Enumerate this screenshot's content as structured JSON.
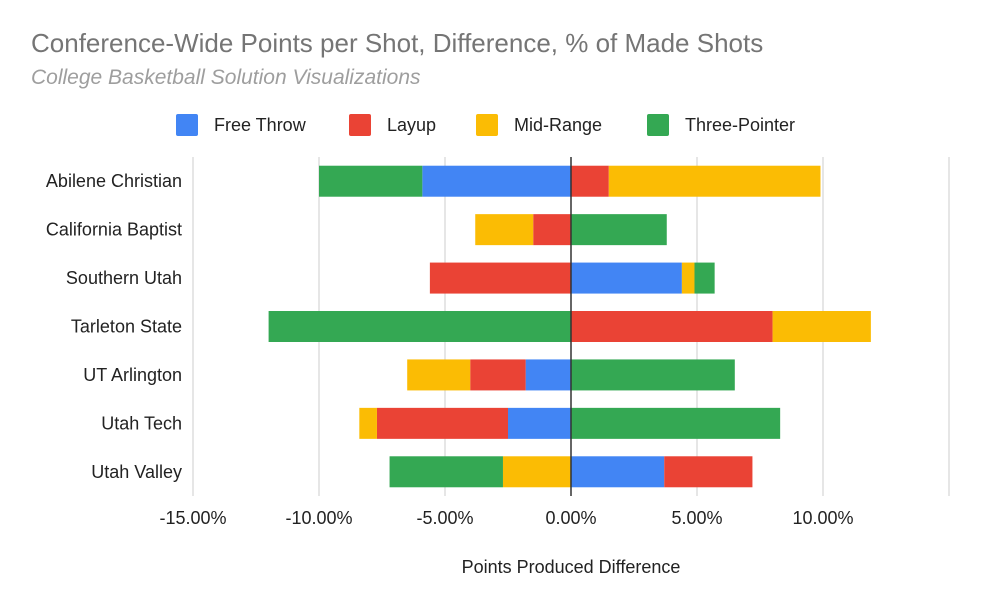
{
  "chart_data": {
    "type": "bar",
    "orientation": "horizontal",
    "stacked": true,
    "title": "Conference-Wide Points per Shot, Difference, % of Made Shots",
    "subtitle": "College Basketball Solution Visualizations",
    "xlabel": "Points Produced Difference",
    "ylabel": "",
    "xlim": [
      -15,
      15
    ],
    "x_ticks": [
      -15,
      -10,
      -5,
      0,
      5,
      10
    ],
    "x_tick_labels": [
      "-15.00%",
      "-10.00%",
      "-5.00%",
      "0.00%",
      "5.00%",
      "10.00%"
    ],
    "grid": true,
    "legend_position": "top",
    "categories": [
      "Abilene Christian",
      "California Baptist",
      "Southern Utah",
      "Tarleton State",
      "UT Arlington",
      "Utah Tech",
      "Utah Valley"
    ],
    "series": [
      {
        "name": "Free Throw",
        "color": "#4285f4",
        "values": [
          -5.9,
          0,
          4.4,
          0,
          -1.8,
          -2.5,
          3.7
        ]
      },
      {
        "name": "Layup",
        "color": "#ea4335",
        "values": [
          1.5,
          -1.5,
          -5.6,
          8.0,
          -2.2,
          -5.2,
          3.5
        ]
      },
      {
        "name": "Mid-Range",
        "color": "#fbbc04",
        "values": [
          8.4,
          -2.3,
          0.5,
          3.9,
          -2.5,
          -0.7,
          -2.7
        ]
      },
      {
        "name": "Three-Pointer",
        "color": "#34a853",
        "values": [
          -4.1,
          3.8,
          0.8,
          -12.0,
          6.5,
          8.3,
          -4.5
        ]
      }
    ]
  }
}
